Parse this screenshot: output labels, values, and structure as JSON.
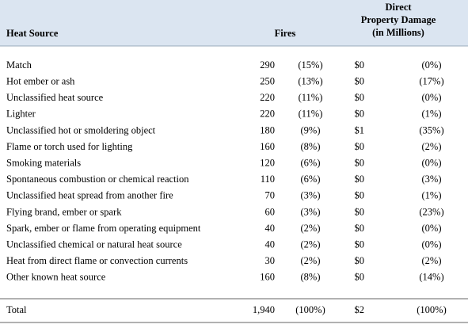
{
  "table": {
    "header": [
      "Heat Source",
      "Fires",
      [
        "Direct",
        "Property Damage",
        "(in Millions)"
      ]
    ],
    "rows": [
      [
        "Match",
        "290",
        "(15%)",
        "$0",
        "(0%)"
      ],
      [
        "Hot ember or ash",
        "250",
        "(13%)",
        "$0",
        "(17%)"
      ],
      [
        "Unclassified heat source",
        "220",
        "(11%)",
        "$0",
        "(0%)"
      ],
      [
        "Lighter",
        "220",
        "(11%)",
        "$0",
        "(1%)"
      ],
      [
        "Unclassified hot or smoldering object",
        "180",
        "(9%)",
        "$1",
        "(35%)"
      ],
      [
        "Flame or torch used for lighting",
        "160",
        "(8%)",
        "$0",
        "(2%)"
      ],
      [
        "Smoking materials",
        "120",
        "(6%)",
        "$0",
        "(0%)"
      ],
      [
        "Spontaneous combustion or chemical reaction",
        "110",
        "(6%)",
        "$0",
        "(3%)"
      ],
      [
        "Unclassified heat spread from another fire",
        "70",
        "(3%)",
        "$0",
        "(1%)"
      ],
      [
        "Flying brand, ember or spark",
        "60",
        "(3%)",
        "$0",
        "(23%)"
      ],
      [
        "Spark, ember or flame from operating equipment",
        "40",
        "(2%)",
        "$0",
        "(0%)"
      ],
      [
        "Unclassified chemical or natural heat source",
        "40",
        "(2%)",
        "$0",
        "(0%)"
      ],
      [
        "Heat from direct flame or convection currents",
        "30",
        "(2%)",
        "$0",
        "(2%)"
      ],
      [
        "Other known heat source",
        "160",
        "(8%)",
        "$0",
        "(14%)"
      ]
    ],
    "total": [
      "Total",
      "1,940",
      "(100%)",
      "$2",
      "(100%)"
    ]
  }
}
